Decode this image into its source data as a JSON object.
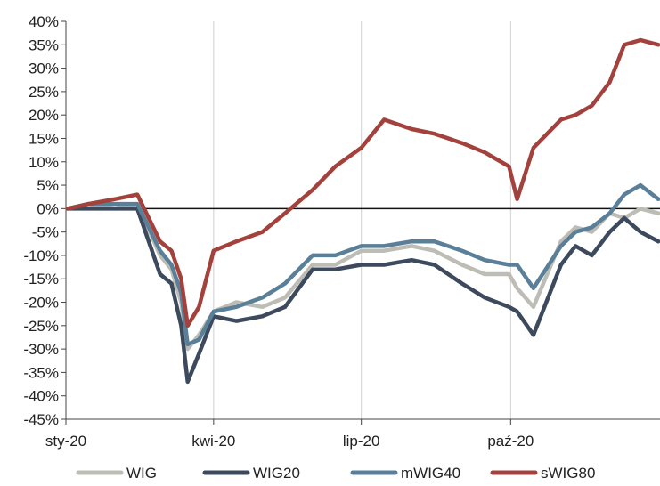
{
  "chart_data": {
    "type": "line",
    "title": "",
    "xlabel": "",
    "ylabel": "",
    "x_tick_labels": [
      "sty-20",
      "kwi-20",
      "lip-20",
      "paź-20"
    ],
    "y_tick_labels": [
      "40%",
      "35%",
      "30%",
      "25%",
      "20%",
      "15%",
      "10%",
      "5%",
      "0%",
      "-5%",
      "-10%",
      "-15%",
      "-20%",
      "-25%",
      "-30%",
      "-35%",
      "-40%",
      "-45%"
    ],
    "ylim": [
      -45,
      40
    ],
    "grid": "vertical at quarter starts",
    "legend_position": "bottom",
    "zero_line": true,
    "series": [
      {
        "name": "WIG",
        "color": "#bdbdb5",
        "x": [
          "2020-01-02",
          "2020-01-15",
          "2020-01-31",
          "2020-02-14",
          "2020-02-28",
          "2020-03-06",
          "2020-03-12",
          "2020-03-16",
          "2020-03-23",
          "2020-04-01",
          "2020-04-15",
          "2020-05-01",
          "2020-05-15",
          "2020-06-01",
          "2020-06-15",
          "2020-07-01",
          "2020-07-15",
          "2020-08-01",
          "2020-08-15",
          "2020-09-01",
          "2020-09-15",
          "2020-09-30",
          "2020-10-05",
          "2020-10-15",
          "2020-11-01",
          "2020-11-10",
          "2020-11-20",
          "2020-12-01",
          "2020-12-10",
          "2020-12-20",
          "2020-12-31"
        ],
        "values": [
          0,
          1,
          0,
          1,
          -10,
          -13,
          -20,
          -30,
          -27,
          -22,
          -20,
          -21,
          -19,
          -12,
          -12,
          -9,
          -9,
          -8,
          -9,
          -12,
          -14,
          -14,
          -17,
          -21,
          -7,
          -4,
          -5,
          -1,
          -2,
          0,
          -1
        ]
      },
      {
        "name": "WIG20",
        "color": "#3d4a5e",
        "x": [
          "2020-01-02",
          "2020-01-15",
          "2020-01-31",
          "2020-02-14",
          "2020-02-28",
          "2020-03-06",
          "2020-03-12",
          "2020-03-16",
          "2020-03-23",
          "2020-04-01",
          "2020-04-15",
          "2020-05-01",
          "2020-05-15",
          "2020-06-01",
          "2020-06-15",
          "2020-07-01",
          "2020-07-15",
          "2020-08-01",
          "2020-08-15",
          "2020-09-01",
          "2020-09-15",
          "2020-09-30",
          "2020-10-05",
          "2020-10-15",
          "2020-11-01",
          "2020-11-10",
          "2020-11-20",
          "2020-12-01",
          "2020-12-10",
          "2020-12-20",
          "2020-12-31"
        ],
        "values": [
          0,
          0,
          0,
          0,
          -14,
          -16,
          -25,
          -37,
          -31,
          -23,
          -24,
          -23,
          -21,
          -13,
          -13,
          -12,
          -12,
          -11,
          -12,
          -16,
          -19,
          -21,
          -22,
          -27,
          -12,
          -8,
          -10,
          -5,
          -2,
          -5,
          -7
        ]
      },
      {
        "name": "mWIG40",
        "color": "#5a7f98",
        "x": [
          "2020-01-02",
          "2020-01-15",
          "2020-01-31",
          "2020-02-14",
          "2020-02-28",
          "2020-03-06",
          "2020-03-12",
          "2020-03-16",
          "2020-03-23",
          "2020-04-01",
          "2020-04-15",
          "2020-05-01",
          "2020-05-15",
          "2020-06-01",
          "2020-06-15",
          "2020-07-01",
          "2020-07-15",
          "2020-08-01",
          "2020-08-15",
          "2020-09-01",
          "2020-09-15",
          "2020-09-30",
          "2020-10-05",
          "2020-10-15",
          "2020-11-01",
          "2020-11-10",
          "2020-11-20",
          "2020-12-01",
          "2020-12-10",
          "2020-12-20",
          "2020-12-31"
        ],
        "values": [
          0,
          1,
          1,
          1,
          -9,
          -12,
          -18,
          -29,
          -28,
          -22,
          -21,
          -19,
          -16,
          -10,
          -10,
          -8,
          -8,
          -7,
          -7,
          -9,
          -11,
          -12,
          -12,
          -17,
          -8,
          -5,
          -4,
          -1,
          3,
          5,
          2
        ]
      },
      {
        "name": "sWIG80",
        "color": "#a3423d",
        "x": [
          "2020-01-02",
          "2020-01-15",
          "2020-01-31",
          "2020-02-14",
          "2020-02-28",
          "2020-03-06",
          "2020-03-12",
          "2020-03-16",
          "2020-03-23",
          "2020-04-01",
          "2020-04-15",
          "2020-05-01",
          "2020-05-15",
          "2020-06-01",
          "2020-06-15",
          "2020-07-01",
          "2020-07-15",
          "2020-08-01",
          "2020-08-15",
          "2020-09-01",
          "2020-09-15",
          "2020-09-30",
          "2020-10-05",
          "2020-10-15",
          "2020-11-01",
          "2020-11-10",
          "2020-11-20",
          "2020-12-01",
          "2020-12-10",
          "2020-12-20",
          "2020-12-31"
        ],
        "values": [
          0,
          1,
          2,
          3,
          -7,
          -9,
          -15,
          -25,
          -21,
          -9,
          -7,
          -5,
          -1,
          4,
          9,
          13,
          19,
          17,
          16,
          14,
          12,
          9,
          2,
          13,
          19,
          20,
          22,
          27,
          35,
          36,
          35
        ]
      }
    ]
  }
}
